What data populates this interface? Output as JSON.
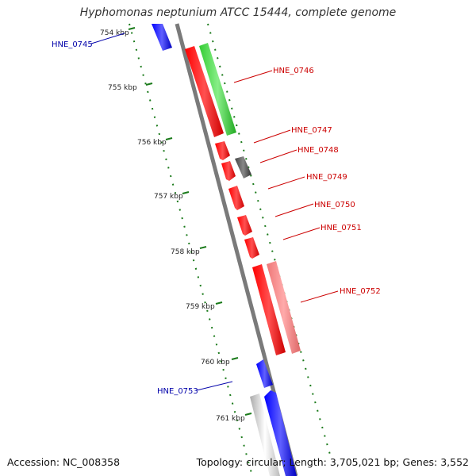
{
  "title": "Hyphomonas neptunium ATCC 15444, complete genome",
  "footer": {
    "accession": "Accession: NC_008358",
    "topology": "Topology: circular;",
    "length": "Length: 3,705,021 bp;",
    "genes": "Genes: 3,552"
  },
  "colors": {
    "backbone": "#808080",
    "tick": "#1a7a1a",
    "forward_gene": "#ff0000",
    "reverse_gene": "#0000ff",
    "rna_gene": "#33cc33",
    "other_gene": "#555555",
    "label_red": "#cc0000",
    "label_blue": "#0000aa"
  },
  "scale_labels": [
    "754 kbp",
    "755 kbp",
    "756 kbp",
    "757 kbp",
    "758 kbp",
    "759 kbp",
    "760 kbp",
    "761 kbp"
  ],
  "gene_labels": [
    {
      "name": "HNE_0745",
      "color": "blue"
    },
    {
      "name": "HNE_0746",
      "color": "red"
    },
    {
      "name": "HNE_0747",
      "color": "red"
    },
    {
      "name": "HNE_0748",
      "color": "red"
    },
    {
      "name": "HNE_0749",
      "color": "red"
    },
    {
      "name": "HNE_0750",
      "color": "red"
    },
    {
      "name": "HNE_0751",
      "color": "red"
    },
    {
      "name": "HNE_0752",
      "color": "red"
    },
    {
      "name": "HNE_0753",
      "color": "blue"
    }
  ]
}
